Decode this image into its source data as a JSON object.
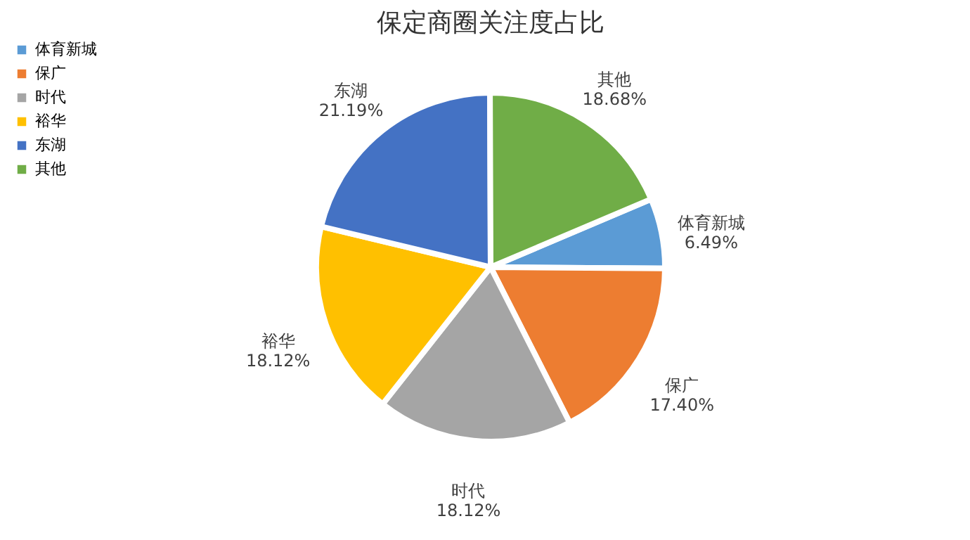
{
  "chart_data": {
    "type": "pie",
    "title": "保定商圈关注度占比",
    "categories": [
      "体育新城",
      "保广",
      "时代",
      "裕华",
      "东湖",
      "其他"
    ],
    "values": [
      6.49,
      17.4,
      18.12,
      18.12,
      21.19,
      18.68
    ],
    "value_labels": [
      "6.49%",
      "17.40%",
      "18.12%",
      "18.12%",
      "21.19%",
      "18.68%"
    ],
    "colors": [
      "#5b9bd5",
      "#ed7d31",
      "#a5a5a5",
      "#ffc000",
      "#4472c4",
      "#70ad47"
    ],
    "legend": "left"
  }
}
